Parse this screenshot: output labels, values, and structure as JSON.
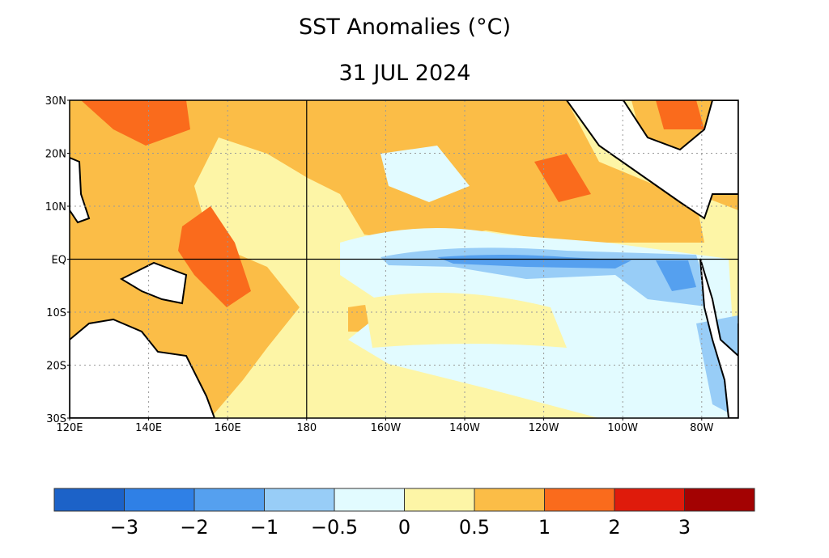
{
  "map": {
    "title": "SST Anomalies (°C)",
    "subtitle": "31 JUL 2024",
    "lat_labels": [
      "30N",
      "20N",
      "10N",
      "EQ",
      "10S",
      "20S",
      "30S"
    ],
    "lon_labels": [
      "120E",
      "140E",
      "160E",
      "180",
      "160W",
      "140W",
      "120W",
      "100W",
      "80W"
    ],
    "colorbar": {
      "colors": [
        "#1c62c8",
        "#2f80e6",
        "#55a0ef",
        "#98cdf7",
        "#e2fbff",
        "#fdf5a6",
        "#fbbd47",
        "#fa6b1c",
        "#df1b0b",
        "#a30202"
      ],
      "labels": [
        "−3",
        "−2",
        "−1",
        "−0.5",
        "0",
        "0.5",
        "1",
        "2",
        "3"
      ]
    }
  }
}
